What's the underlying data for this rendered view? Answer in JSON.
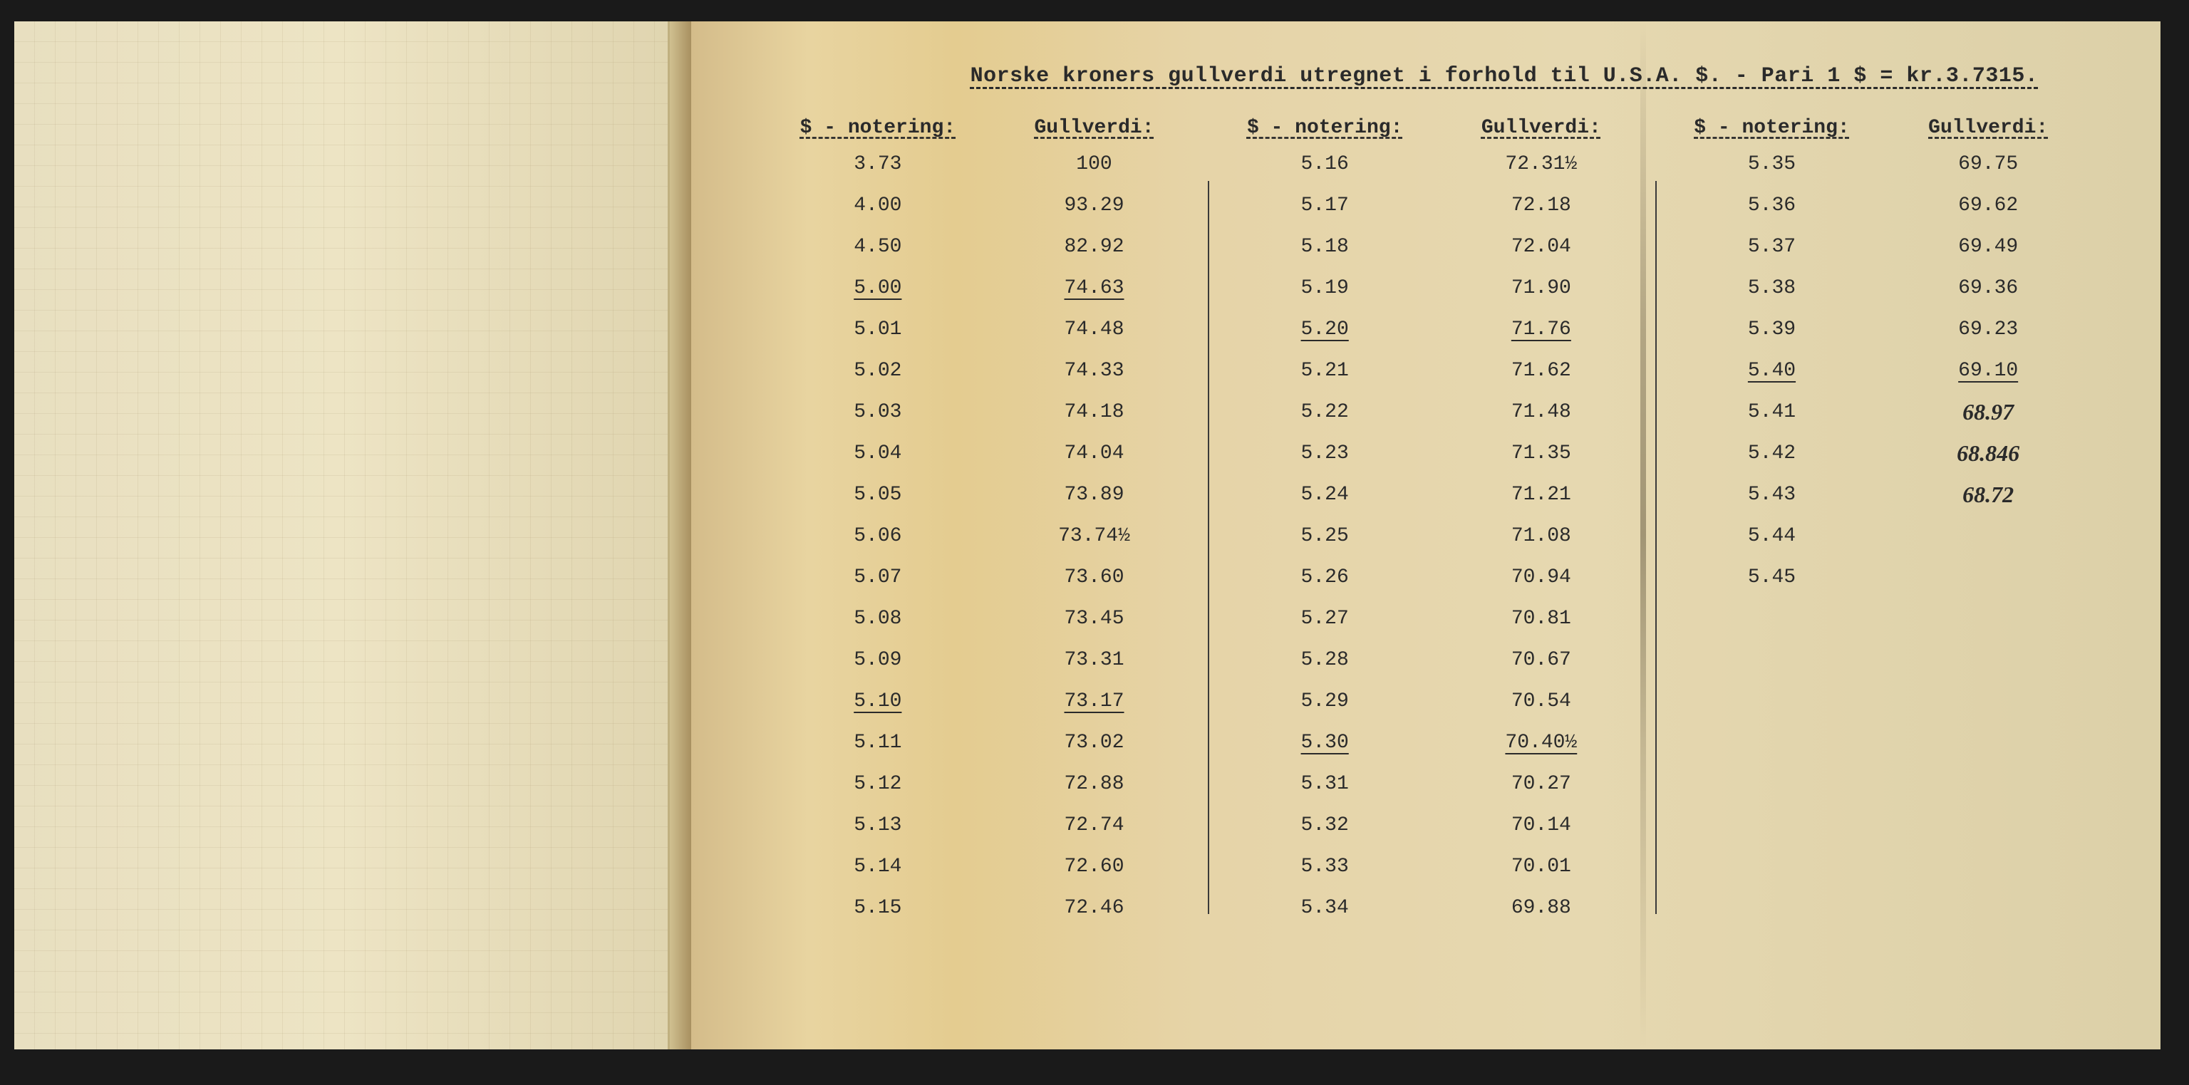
{
  "document": {
    "title": "Norske kroners gullverdi utregnet i forhold til U.S.A. $. - Pari 1 $ = kr.3.7315.",
    "column_headers": {
      "notering": "$ - notering:",
      "gullverdi": "Gullverdi:"
    },
    "colors": {
      "page_background": "#1a1a1a",
      "left_page_bg": "#e8dfc0",
      "right_page_bg": "#e6d4a8",
      "text_color": "#2a2a2a",
      "grid_line": "#c0b088",
      "divider": "#3a3a3a"
    },
    "typography": {
      "font_family": "Courier New",
      "title_fontsize": 30,
      "header_fontsize": 28,
      "cell_fontsize": 28,
      "handwritten_font": "Brush Script MT"
    },
    "type": "table",
    "column_groups": [
      {
        "rows": [
          {
            "n": "3.73",
            "g": "100",
            "un": false,
            "ug": false
          },
          {
            "n": "4.00",
            "g": "93.29",
            "un": false,
            "ug": false
          },
          {
            "n": "4.50",
            "g": "82.92",
            "un": false,
            "ug": false
          },
          {
            "n": "5.00",
            "g": "74.63",
            "un": true,
            "ug": true
          },
          {
            "n": "5.01",
            "g": "74.48",
            "un": false,
            "ug": false
          },
          {
            "n": "5.02",
            "g": "74.33",
            "un": false,
            "ug": false
          },
          {
            "n": "5.03",
            "g": "74.18",
            "un": false,
            "ug": false
          },
          {
            "n": "5.04",
            "g": "74.04",
            "un": false,
            "ug": false
          },
          {
            "n": "5.05",
            "g": "73.89",
            "un": false,
            "ug": false
          },
          {
            "n": "5.06",
            "g": "73.74½",
            "un": false,
            "ug": false
          },
          {
            "n": "5.07",
            "g": "73.60",
            "un": false,
            "ug": false
          },
          {
            "n": "5.08",
            "g": "73.45",
            "un": false,
            "ug": false
          },
          {
            "n": "5.09",
            "g": "73.31",
            "un": false,
            "ug": false
          },
          {
            "n": "5.10",
            "g": "73.17",
            "un": true,
            "ug": true
          },
          {
            "n": "5.11",
            "g": "73.02",
            "un": false,
            "ug": false
          },
          {
            "n": "5.12",
            "g": "72.88",
            "un": false,
            "ug": false
          },
          {
            "n": "5.13",
            "g": "72.74",
            "un": false,
            "ug": false
          },
          {
            "n": "5.14",
            "g": "72.60",
            "un": false,
            "ug": false
          },
          {
            "n": "5.15",
            "g": "72.46",
            "un": false,
            "ug": false
          }
        ]
      },
      {
        "rows": [
          {
            "n": "5.16",
            "g": "72.31½",
            "un": false,
            "ug": false
          },
          {
            "n": "5.17",
            "g": "72.18",
            "un": false,
            "ug": false
          },
          {
            "n": "5.18",
            "g": "72.04",
            "un": false,
            "ug": false
          },
          {
            "n": "5.19",
            "g": "71.90",
            "un": false,
            "ug": false
          },
          {
            "n": "5.20",
            "g": "71.76",
            "un": true,
            "ug": true
          },
          {
            "n": "5.21",
            "g": "71.62",
            "un": false,
            "ug": false
          },
          {
            "n": "5.22",
            "g": "71.48",
            "un": false,
            "ug": false
          },
          {
            "n": "5.23",
            "g": "71.35",
            "un": false,
            "ug": false
          },
          {
            "n": "5.24",
            "g": "71.21",
            "un": false,
            "ug": false
          },
          {
            "n": "5.25",
            "g": "71.08",
            "un": false,
            "ug": false
          },
          {
            "n": "5.26",
            "g": "70.94",
            "un": false,
            "ug": false
          },
          {
            "n": "5.27",
            "g": "70.81",
            "un": false,
            "ug": false
          },
          {
            "n": "5.28",
            "g": "70.67",
            "un": false,
            "ug": false
          },
          {
            "n": "5.29",
            "g": "70.54",
            "un": false,
            "ug": false
          },
          {
            "n": "5.30",
            "g": "70.40½",
            "un": true,
            "ug": true
          },
          {
            "n": "5.31",
            "g": "70.27",
            "un": false,
            "ug": false
          },
          {
            "n": "5.32",
            "g": "70.14",
            "un": false,
            "ug": false
          },
          {
            "n": "5.33",
            "g": "70.01",
            "un": false,
            "ug": false
          },
          {
            "n": "5.34",
            "g": "69.88",
            "un": false,
            "ug": false
          }
        ]
      },
      {
        "rows": [
          {
            "n": "5.35",
            "g": "69.75",
            "un": false,
            "ug": false
          },
          {
            "n": "5.36",
            "g": "69.62",
            "un": false,
            "ug": false
          },
          {
            "n": "5.37",
            "g": "69.49",
            "un": false,
            "ug": false
          },
          {
            "n": "5.38",
            "g": "69.36",
            "un": false,
            "ug": false
          },
          {
            "n": "5.39",
            "g": "69.23",
            "un": false,
            "ug": false
          },
          {
            "n": "5.40",
            "g": "69.10",
            "un": true,
            "ug": true
          },
          {
            "n": "5.41",
            "g": "68.97",
            "un": false,
            "ug": false,
            "hw_g": true
          },
          {
            "n": "5.42",
            "g": "68.846",
            "un": false,
            "ug": false,
            "hw_g": true
          },
          {
            "n": "5.43",
            "g": "68.72",
            "un": false,
            "ug": false,
            "hw_g": true
          },
          {
            "n": "5.44",
            "g": "",
            "un": false,
            "ug": false
          },
          {
            "n": "5.45",
            "g": "",
            "un": false,
            "ug": false
          }
        ]
      }
    ]
  }
}
